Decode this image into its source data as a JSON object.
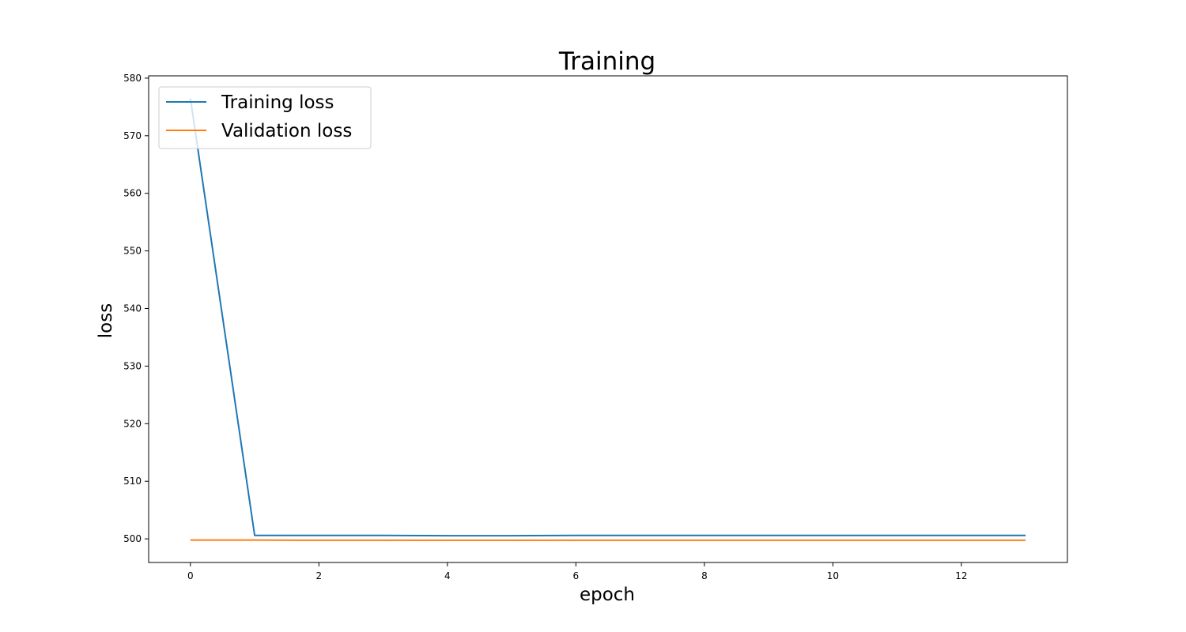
{
  "chart_data": {
    "type": "line",
    "title": "Training",
    "xlabel": "epoch",
    "ylabel": "loss",
    "x": [
      0,
      1,
      2,
      3,
      4,
      5,
      6,
      7,
      8,
      9,
      10,
      11,
      12,
      13
    ],
    "series": [
      {
        "name": "Training loss",
        "color": "#1f77b4",
        "values": [
          576.5,
          500.6,
          500.6,
          500.6,
          500.55,
          500.55,
          500.6,
          500.6,
          500.6,
          500.6,
          500.6,
          500.6,
          500.6,
          500.6
        ]
      },
      {
        "name": "Validation loss",
        "color": "#ff7f0e",
        "values": [
          499.8,
          499.8,
          499.75,
          499.75,
          499.75,
          499.75,
          499.75,
          499.75,
          499.75,
          499.75,
          499.75,
          499.75,
          499.75,
          499.75
        ]
      }
    ],
    "xlim": [
      -0.65,
      13.65
    ],
    "ylim": [
      495.9,
      580.4
    ],
    "xticks": [
      0,
      2,
      4,
      6,
      8,
      10,
      12
    ],
    "yticks": [
      500,
      510,
      520,
      530,
      540,
      550,
      560,
      570,
      580
    ],
    "grid": false,
    "legend_position": "upper-left"
  }
}
